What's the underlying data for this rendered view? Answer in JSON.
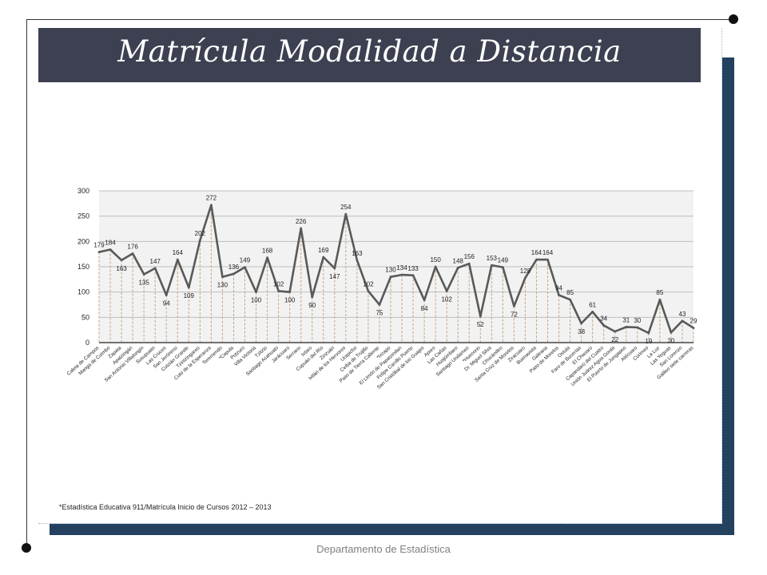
{
  "slide": {
    "title": "Matrícula Modalidad a Distancia",
    "footnote": "*Estadística Educativa 911/Matrícula Inicio de Cursos 2012 – 2013",
    "footer": "Departamento de Estadística"
  },
  "colors": {
    "title_bar": "#3d4051",
    "shadow_block": "#24415f",
    "line": "#595959",
    "drop_line": "#c9a27e",
    "plot_background": "#f2f2f2"
  },
  "chart_data": {
    "type": "line",
    "title": "",
    "xlabel": "",
    "ylabel": "",
    "ylim": [
      0,
      300
    ],
    "yticks": [
      0,
      50,
      100,
      150,
      200,
      250,
      300
    ],
    "grid": true,
    "legend": "none",
    "categories": [
      "Caleta de Campos",
      "Manga de Cuimbo",
      "Zapata",
      "Apatzingán",
      "San Antonio Villalongín",
      "Susupuato",
      "Las Cruces",
      "San Jerónimo",
      "Cutzián Grande",
      "Tzintzingareo",
      "Cuto de la Esperanza",
      "Teremendo",
      "*Capula",
      "Potzuro",
      "Villa Victoria",
      "Tzitzio",
      "Santiago Acahuato",
      "Jarácuaro",
      "Serrano",
      "Ixtaro",
      "Cupuán del Río",
      "Zinzuán",
      "Ixtlán de los Hervores",
      "Urapicho",
      "Ceiba de Trujillo",
      "Paso de Tierra Caliente",
      "*Ixcapo",
      "El Limón de Papatzindan",
      "Felipe Carrillo Puerto",
      "San Cristóbal de los Guajes",
      "Aporo",
      "Las Cañas",
      "Huajúmbaro",
      "Santiago Undameo",
      "*Huecorio",
      "Dr. Miguel Silva",
      "Chucándiro",
      "Santa Cruz de Morelos",
      "Ziracuaro",
      "Buenavista",
      "Galeana",
      "Paso de Morelos",
      "Ostula",
      "Faro de Bucerías",
      "El Chauaro",
      "Capandaro del Cuatro",
      "Unión Juárez Agua Gorda",
      "El Puerto de Jungapeo",
      "Atécuaro",
      "Curimeo",
      "La Luz",
      "Las Yeguas",
      "San Lorenzo",
      "Galileo siete carreras"
    ],
    "series": [
      {
        "values": [
          179,
          184,
          163,
          176,
          135,
          147,
          94,
          164,
          109,
          202,
          272,
          130,
          136,
          149,
          100,
          168,
          102,
          100,
          226,
          90,
          169,
          147,
          254,
          163,
          102,
          75,
          130,
          134,
          133,
          84,
          150,
          102,
          148,
          156,
          52,
          153,
          149,
          72,
          128,
          164,
          164,
          94,
          85,
          38,
          61,
          34,
          22,
          31,
          30,
          19,
          85,
          20,
          43,
          29
        ]
      }
    ]
  }
}
